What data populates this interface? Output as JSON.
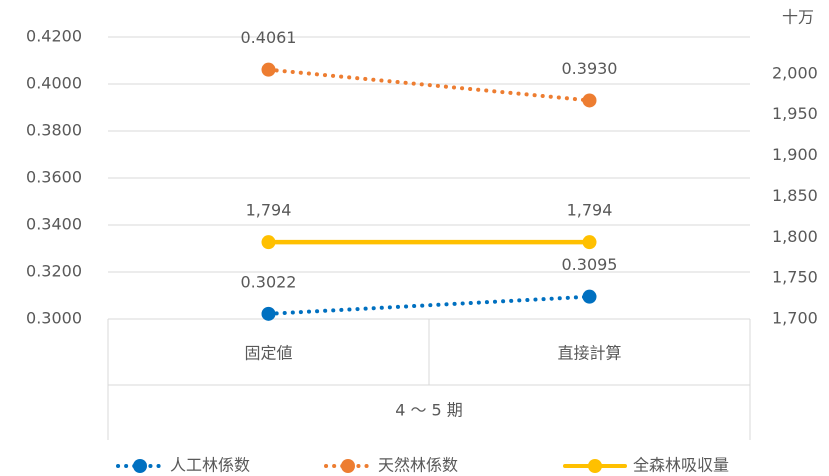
{
  "chart_data": {
    "type": "line",
    "categories": [
      "固定値",
      "直接計算"
    ],
    "x_group_label": "4 ～ 5 期",
    "y2_label": "十万",
    "ylim": [
      0.3,
      0.42
    ],
    "yticks": [
      {
        "value": 0.3,
        "label": "0.3000"
      },
      {
        "value": 0.32,
        "label": "0.3200"
      },
      {
        "value": 0.34,
        "label": "0.3400"
      },
      {
        "value": 0.36,
        "label": "0.3600"
      },
      {
        "value": 0.38,
        "label": "0.3800"
      },
      {
        "value": 0.4,
        "label": "0.4000"
      },
      {
        "value": 0.42,
        "label": "0.4200"
      }
    ],
    "y2lim": [
      1700,
      2045
    ],
    "y2ticks": [
      {
        "value": 1700,
        "label": "1,700"
      },
      {
        "value": 1750,
        "label": "1,750"
      },
      {
        "value": 1800,
        "label": "1,800"
      },
      {
        "value": 1850,
        "label": "1,850"
      },
      {
        "value": 1900,
        "label": "1,900"
      },
      {
        "value": 1950,
        "label": "1,950"
      },
      {
        "value": 2000,
        "label": "2,000"
      }
    ],
    "grid": true,
    "legend": "bottom",
    "series": [
      {
        "name": "人工林係数",
        "color": "#0070c0",
        "dash": "dotted",
        "values": [
          0.3022,
          0.3095
        ],
        "value_labels": [
          "0.3022",
          "0.3095"
        ]
      },
      {
        "name": "天然林係数",
        "color": "#ed7d31",
        "dash": "dotted",
        "values": [
          0.4061,
          0.393
        ],
        "value_labels": [
          "0.4061",
          "0.3930"
        ]
      },
      {
        "name": "全森林吸収量",
        "color": "#ffc000",
        "dash": "solid",
        "axis": "y2",
        "values": [
          1794,
          1794
        ],
        "value_labels": [
          "1,794",
          "1,794"
        ]
      }
    ]
  }
}
